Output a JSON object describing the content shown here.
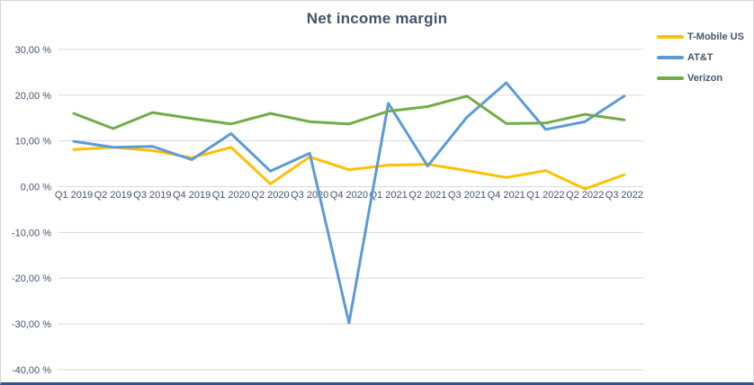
{
  "colors": {
    "title_text": "#44546A",
    "axis_text": "#44546A",
    "gridline": "#D9D9D9",
    "background": "#FFFFFF",
    "bottom_edge": "#35518E",
    "tmobile": "#FFC000",
    "att": "#5B9BD5",
    "verizon": "#70AD47"
  },
  "chart_data": {
    "type": "line",
    "title": "Net income margin",
    "xlabel": "",
    "ylabel": "",
    "grid": "horizontal",
    "legend_position": "top-right",
    "number_format": "percent, comma decimal separator",
    "categories": [
      "Q1 2019",
      "Q2 2019",
      "Q3 2019",
      "Q4 2019",
      "Q1 2020",
      "Q2 2020",
      "Q3 2020",
      "Q4 2020",
      "Q1 2021",
      "Q2 2021",
      "Q3 2021",
      "Q4 2021",
      "Q1 2022",
      "Q2 2022",
      "Q3 2022"
    ],
    "series": [
      {
        "name": "T-Mobile US",
        "color": "#FFC000",
        "values": [
          8.1,
          8.6,
          7.9,
          6.3,
          8.6,
          0.6,
          6.5,
          3.7,
          4.7,
          4.9,
          3.5,
          2.0,
          3.5,
          -0.5,
          2.6
        ]
      },
      {
        "name": "AT&T",
        "color": "#5B9BD5",
        "values": [
          9.9,
          8.6,
          8.8,
          5.9,
          11.6,
          3.4,
          7.3,
          -29.8,
          18.2,
          4.5,
          15.2,
          22.7,
          12.5,
          14.2,
          19.8
        ]
      },
      {
        "name": "Verizon",
        "color": "#70AD47",
        "values": [
          16.0,
          12.7,
          16.2,
          14.9,
          13.7,
          16.0,
          14.2,
          13.7,
          16.5,
          17.5,
          19.8,
          13.8,
          13.9,
          15.8,
          14.6
        ]
      }
    ],
    "y_axis": {
      "min": -40,
      "max": 30,
      "ticks": [
        {
          "value": 30,
          "label": "30,00 %"
        },
        {
          "value": 20,
          "label": "20,00 %"
        },
        {
          "value": 10,
          "label": "10,00 %"
        },
        {
          "value": 0,
          "label": "0,00 %"
        },
        {
          "value": -10,
          "label": "-10,00 %"
        },
        {
          "value": -20,
          "label": "-20,00 %"
        },
        {
          "value": -30,
          "label": "-30,00 %"
        },
        {
          "value": -40,
          "label": "-40,00 %"
        }
      ]
    }
  }
}
